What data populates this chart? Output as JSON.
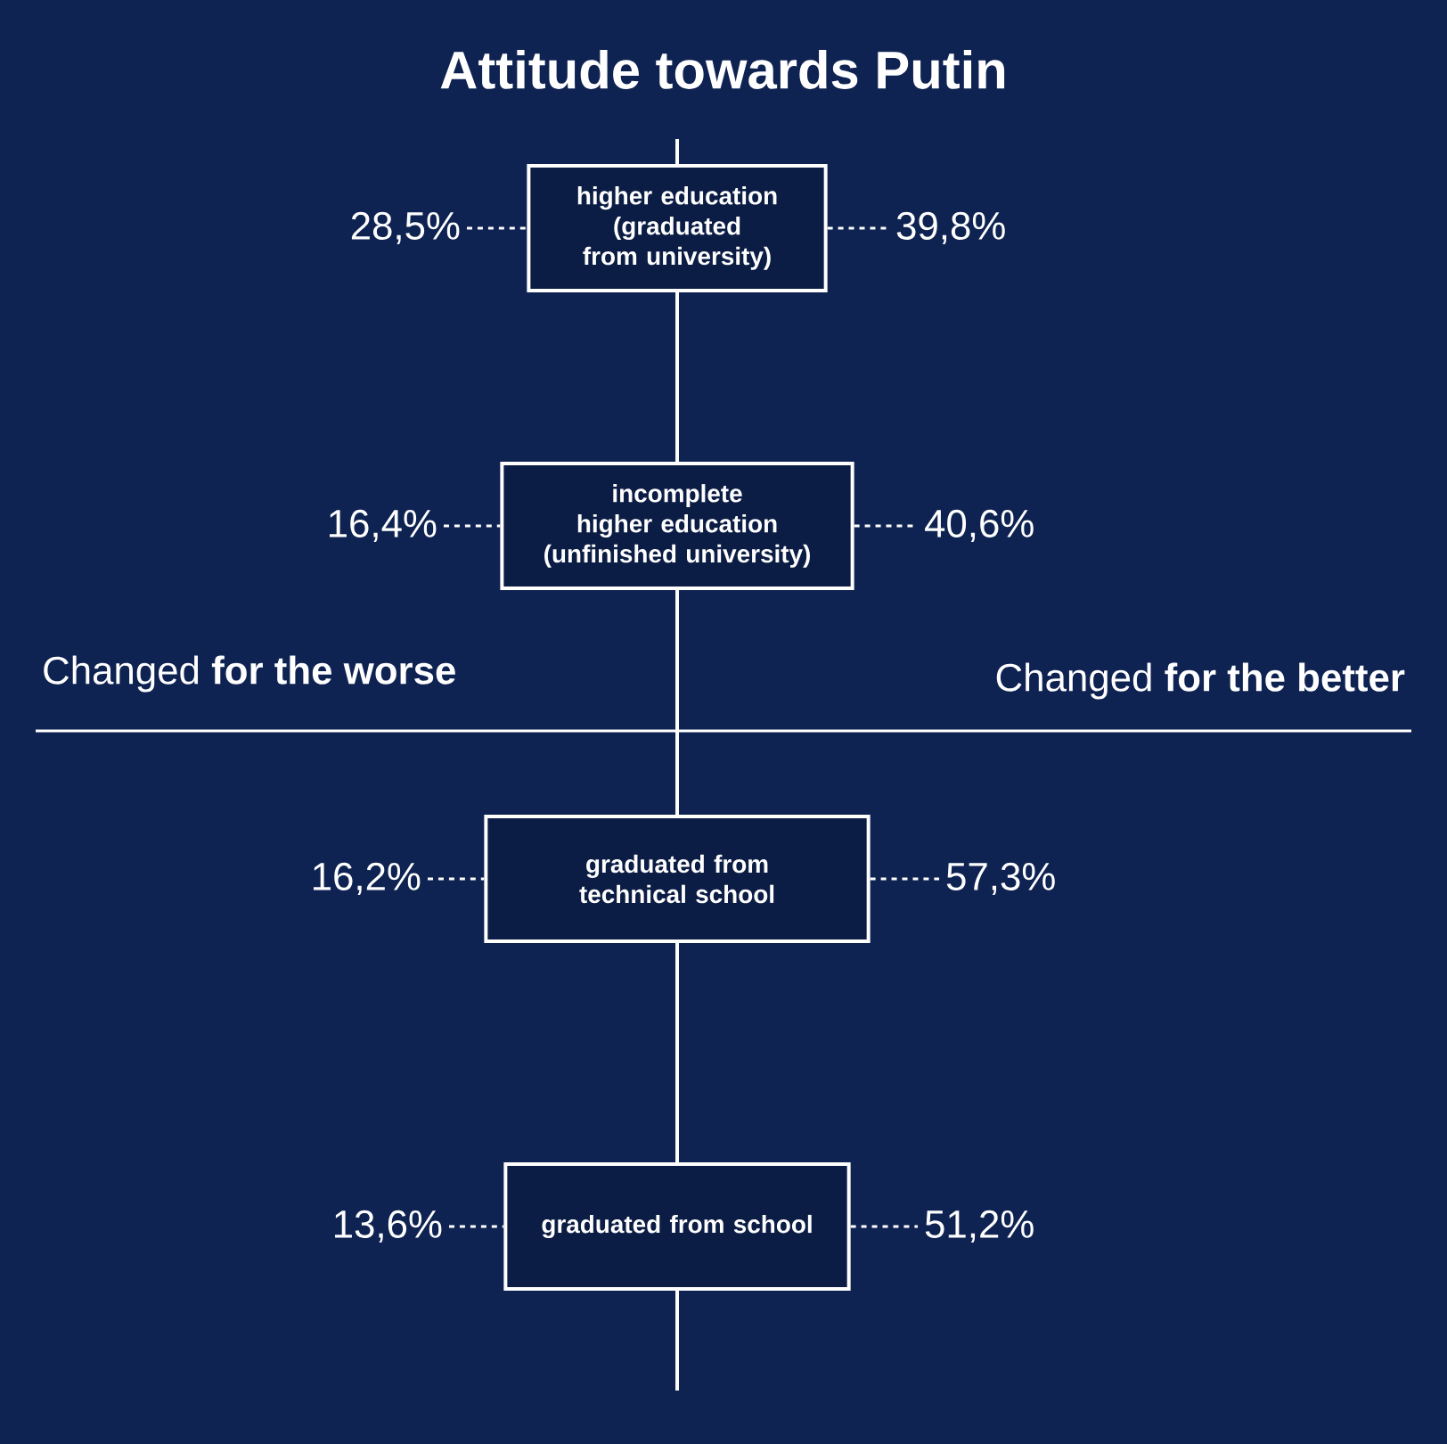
{
  "chart_data": {
    "type": "other",
    "title": "Attitude towards Putin",
    "categories": [
      "higher education (graduated from university)",
      "incomplete higher education (unfinished university)",
      "graduated from technical school",
      "graduated from school"
    ],
    "series": [
      {
        "name": "Changed **for the worse**",
        "values": [
          28.5,
          16.4,
          16.2,
          13.6
        ],
        "value_labels": [
          "28,5%",
          "16,4%",
          "16,2%",
          "13,6%"
        ]
      },
      {
        "name": "Changed **for the better**",
        "values": [
          39.8,
          40.6,
          57.3,
          51.2
        ],
        "value_labels": [
          "39,8%",
          "40,6%",
          "57,3%",
          "51,2%"
        ]
      }
    ]
  }
}
